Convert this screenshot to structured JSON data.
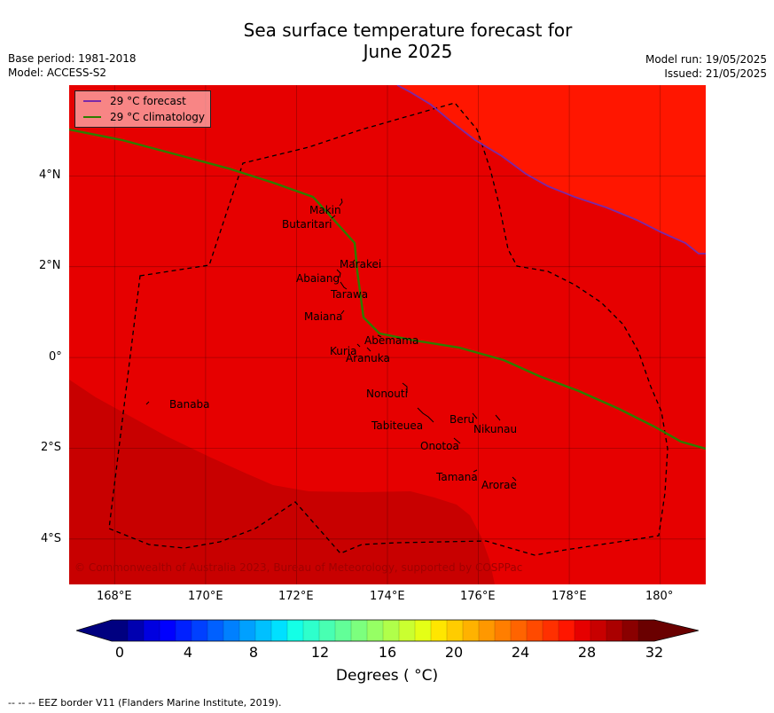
{
  "title_line1": "Sea surface temperature forecast for",
  "title_line2": "June 2025",
  "meta_left": {
    "base_period": "Base period: 1981-2018",
    "model": "Model: ACCESS-S2"
  },
  "meta_right": {
    "model_run": "Model run: 19/05/2025",
    "issued": "Issued: 21/05/2025"
  },
  "legend": {
    "forecast": {
      "label": "29 °C  forecast",
      "color": "#7a2aa8"
    },
    "climatology": {
      "label": "29 °C  climatology",
      "color": "#2e7d00"
    }
  },
  "copyright": "© Commonwealth of Australia 2023, Bureau of Meteorology, supported by COSPPac",
  "map_extent": {
    "lon": [
      167,
      181
    ],
    "lat": [
      -5,
      6
    ]
  },
  "lat_labels": [
    "4°N",
    "2°N",
    "0°",
    "2°S",
    "4°S"
  ],
  "lon_labels": [
    "168°E",
    "170°E",
    "172°E",
    "174°E",
    "176°E",
    "178°E",
    "180°"
  ],
  "places": [
    {
      "name": "Makin"
    },
    {
      "name": "Butaritari"
    },
    {
      "name": "Marakei"
    },
    {
      "name": "Abaiang"
    },
    {
      "name": "Tarawa"
    },
    {
      "name": "Maiana"
    },
    {
      "name": "Abemama"
    },
    {
      "name": "Kuria"
    },
    {
      "name": "Aranuka"
    },
    {
      "name": "Banaba"
    },
    {
      "name": "Nonouti"
    },
    {
      "name": "Beru"
    },
    {
      "name": "Tabiteuea"
    },
    {
      "name": "Nikunau"
    },
    {
      "name": "Onotoa"
    },
    {
      "name": "Tamana"
    },
    {
      "name": "Arorae"
    }
  ],
  "colorbar": {
    "ticks": [
      "0",
      "4",
      "8",
      "12",
      "16",
      "20",
      "24",
      "28",
      "32"
    ],
    "title": "Degrees ( °C)",
    "range": [
      0,
      32
    ],
    "colors": [
      "#000080",
      "#0000b0",
      "#0000e0",
      "#0000ff",
      "#0020ff",
      "#0040ff",
      "#0060ff",
      "#0080ff",
      "#00a0ff",
      "#00c0ff",
      "#00e0ff",
      "#14ffe6",
      "#2effcc",
      "#48ffb2",
      "#62ff98",
      "#7cff7e",
      "#96ff64",
      "#b0ff4a",
      "#caff30",
      "#e4ff16",
      "#ffe600",
      "#ffcc00",
      "#ffb200",
      "#ff9800",
      "#ff7e00",
      "#ff6400",
      "#ff4a00",
      "#ff3000",
      "#ff1600",
      "#e60000",
      "#c80000",
      "#aa0000",
      "#8a0000",
      "#6a0000"
    ],
    "under_color": "#000080",
    "over_color": "#6a0000"
  },
  "map_colors": {
    "c30_31": "#e60000",
    "c29_30": "#ff1600",
    "c31_32": "#c80000"
  },
  "footer": "--  --  -- EEZ border V11 (Flanders Marine Institute, 2019)."
}
